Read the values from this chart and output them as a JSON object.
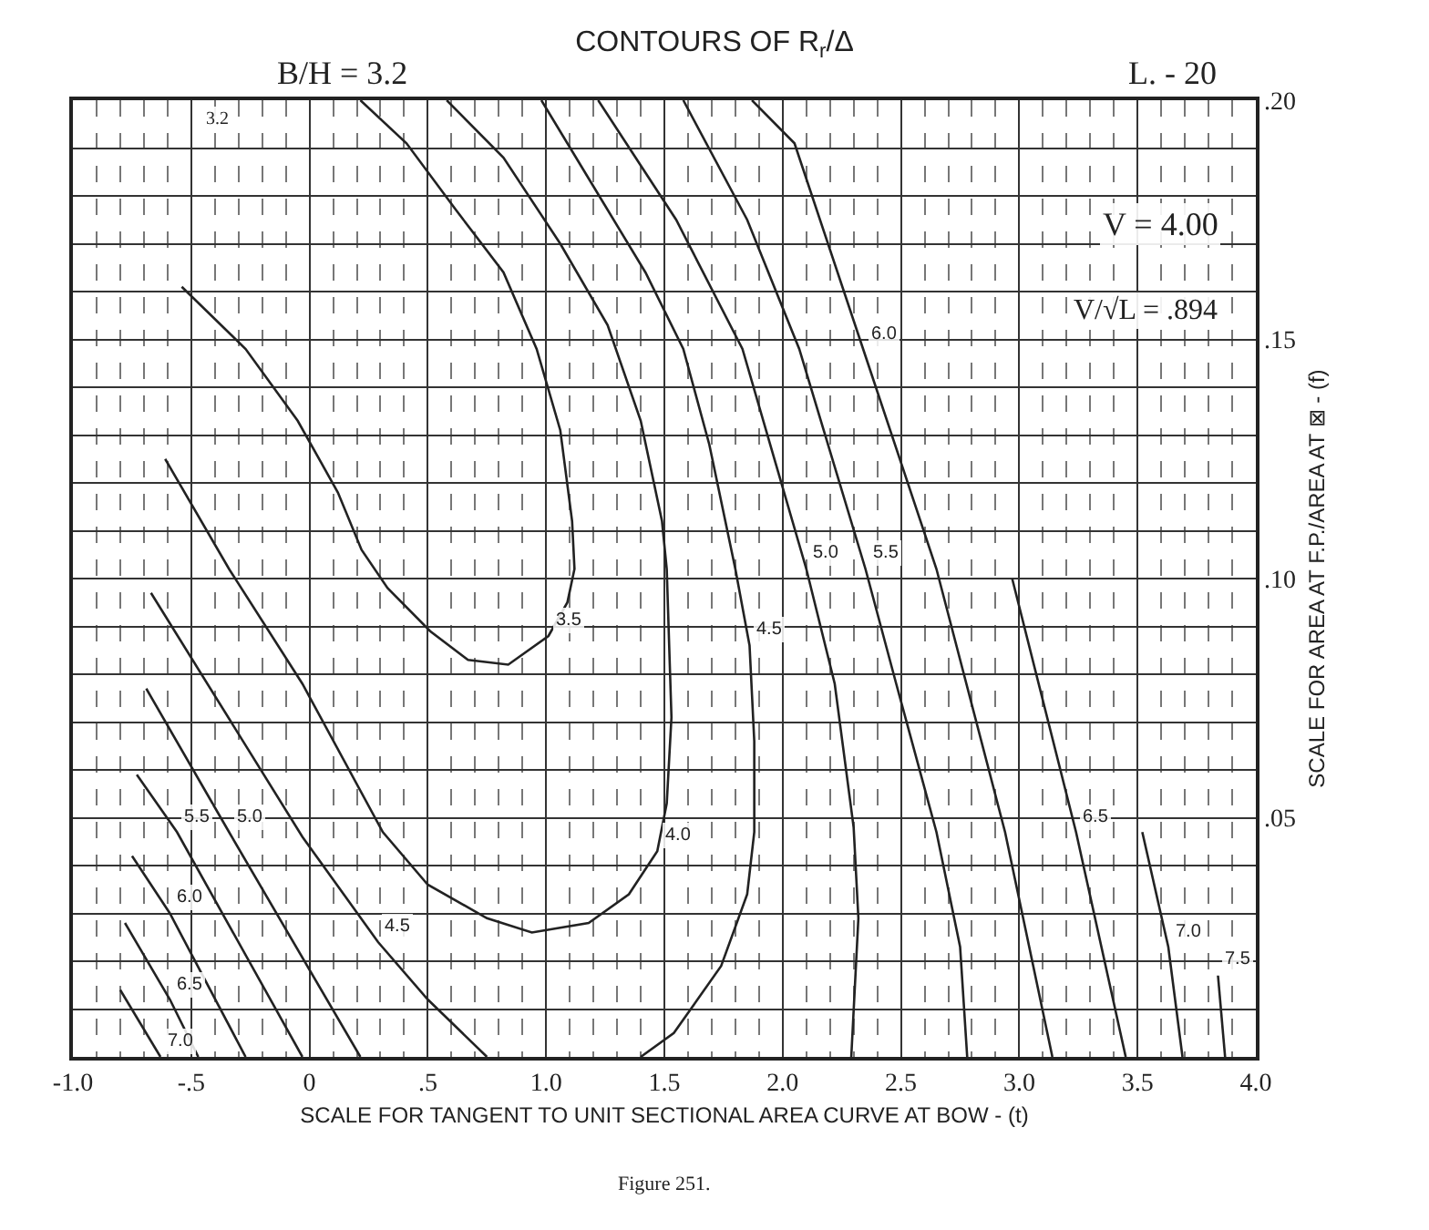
{
  "chart_data": {
    "type": "line",
    "title": "CONTOURS OF R$_{r}$/Δ",
    "xlabel": "SCALE FOR TANGENT TO UNIT SECTIONAL AREA CURVE AT BOW - (t)",
    "ylabel": "SCALE FOR AREA AT F.P./AREA AT ⊠ - (f)",
    "annotations": [
      "B/H = 3.2",
      "L. - 20",
      "V = 4.00",
      "V/√L = .894",
      "3.2",
      "Figure 251."
    ],
    "xlim": [
      -1.0,
      4.0
    ],
    "ylim": [
      0,
      0.2
    ],
    "xticks": [
      {
        "value": -1.0,
        "label": "-1.0"
      },
      {
        "value": -0.5,
        "label": "-.5"
      },
      0,
      {
        "value": 0.5,
        "label": ".5"
      },
      {
        "value": 1.0,
        "label": "1.0"
      },
      {
        "value": 1.5,
        "label": "1.5"
      },
      {
        "value": 2.0,
        "label": "2.0"
      },
      {
        "value": 2.5,
        "label": "2.5"
      },
      {
        "value": 3.0,
        "label": "3.0"
      },
      {
        "value": 3.5,
        "label": "3.5"
      },
      {
        "value": 4.0,
        "label": "4.0"
      }
    ],
    "yticks": [
      {
        "value": 0.05,
        "label": ".05"
      },
      {
        "value": 0.1,
        "label": ".10"
      },
      {
        "value": 0.15,
        "label": ".15"
      },
      {
        "value": 0.2,
        "label": ".20"
      }
    ],
    "grid": true,
    "legend": false,
    "marker": "none",
    "line_style": "solid",
    "series": [
      {
        "name": "3.5",
        "color": "#222222",
        "x": [
          0.215,
          0.41,
          0.62,
          0.82,
          0.96,
          1.06,
          1.11,
          1.12,
          1.09,
          1.01,
          0.84,
          0.67,
          0.51,
          0.33,
          0.22,
          0.12,
          -0.05,
          -0.27,
          -0.54
        ],
        "values": [
          0.2,
          0.191,
          0.177,
          0.164,
          0.148,
          0.131,
          0.112,
          0.102,
          0.095,
          0.088,
          0.082,
          0.083,
          0.089,
          0.098,
          0.106,
          0.118,
          0.133,
          0.148,
          0.161
        ]
      },
      {
        "name": "4.0",
        "color": "#222222",
        "x": [
          -0.61,
          -0.34,
          -0.03,
          0.31,
          0.5,
          0.75,
          0.94,
          1.18,
          1.35,
          1.47,
          1.51,
          1.53,
          1.51,
          1.49,
          1.4,
          1.26,
          1.06,
          0.82,
          0.58
        ],
        "values": [
          0.125,
          0.102,
          0.078,
          0.047,
          0.036,
          0.029,
          0.026,
          0.028,
          0.034,
          0.043,
          0.053,
          0.071,
          0.102,
          0.112,
          0.133,
          0.153,
          0.17,
          0.188,
          0.2
        ]
      },
      {
        "name": "4.5",
        "color": "#222222",
        "x": [
          -0.67,
          -0.03,
          0.29,
          0.5,
          0.75,
          null,
          1.4,
          1.54,
          1.74,
          1.85,
          1.88,
          1.88,
          1.86,
          1.8,
          1.69,
          1.58,
          1.42,
          1.2,
          0.98
        ],
        "values": [
          0.097,
          0.046,
          0.024,
          0.012,
          0,
          null,
          0,
          0.005,
          0.019,
          0.034,
          0.047,
          0.066,
          0.086,
          0.102,
          0.128,
          0.148,
          0.164,
          0.182,
          0.2
        ]
      },
      {
        "name": "5.0",
        "color": "#222222",
        "x": [
          -0.69,
          -0.34,
          0.215,
          null,
          2.29,
          2.32,
          2.3,
          2.22,
          2.1,
          1.83,
          1.55,
          1.22
        ],
        "values": [
          0.077,
          0.047,
          0,
          null,
          0,
          0.029,
          0.048,
          0.078,
          0.102,
          0.148,
          0.175,
          0.2
        ]
      },
      {
        "name": "5.5",
        "color": "#222222",
        "x": [
          -0.73,
          -0.56,
          -0.03,
          null,
          2.78,
          2.75,
          2.65,
          2.48,
          2.35,
          2.07,
          1.85,
          1.58
        ],
        "values": [
          0.059,
          0.047,
          0,
          null,
          0,
          0.023,
          0.047,
          0.078,
          0.102,
          0.148,
          0.175,
          0.2
        ]
      },
      {
        "name": "6.0",
        "color": "#222222",
        "x": [
          -0.75,
          -0.59,
          -0.27,
          null,
          3.14,
          2.94,
          2.65,
          2.34,
          2.05,
          1.87
        ],
        "values": [
          0.042,
          0.03,
          0,
          null,
          0,
          0.047,
          0.102,
          0.148,
          0.191,
          0.2
        ]
      },
      {
        "name": "6.5",
        "color": "#222222",
        "x": [
          -0.78,
          -0.59,
          -0.47,
          null,
          3.45,
          3.24,
          2.97
        ],
        "values": [
          0.028,
          0.012,
          0,
          null,
          0,
          0.047,
          0.1
        ]
      },
      {
        "name": "7.0",
        "color": "#222222",
        "x": [
          -0.8,
          -0.63,
          null,
          3.69,
          3.63,
          3.52
        ],
        "values": [
          0.014,
          0,
          null,
          0,
          0.023,
          0.047
        ]
      },
      {
        "name": "7.5",
        "color": "#222222",
        "x": [
          3.87,
          3.84
        ],
        "values": [
          0,
          0.017
        ]
      }
    ]
  }
}
